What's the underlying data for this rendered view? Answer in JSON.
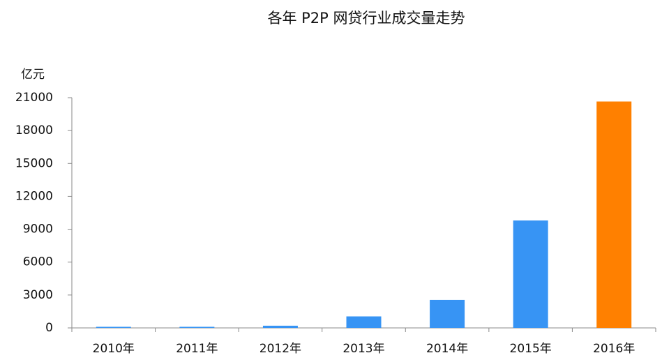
{
  "chart_data": {
    "type": "bar",
    "title": "各年 P2P 网贷行业成交量走势",
    "y_label": "亿元",
    "categories": [
      "2010年",
      "2011年",
      "2012年",
      "2013年",
      "2014年",
      "2015年",
      "2016年"
    ],
    "values": [
      100,
      100,
      200,
      1050,
      2550,
      9800,
      20650
    ],
    "colors": [
      "#3794f4",
      "#3794f4",
      "#3794f4",
      "#3794f4",
      "#3794f4",
      "#3794f4",
      "#ff8000"
    ],
    "ylim": [
      0,
      21000
    ],
    "yticks": [
      0,
      3000,
      6000,
      9000,
      12000,
      15000,
      18000,
      21000
    ],
    "grid": false
  }
}
